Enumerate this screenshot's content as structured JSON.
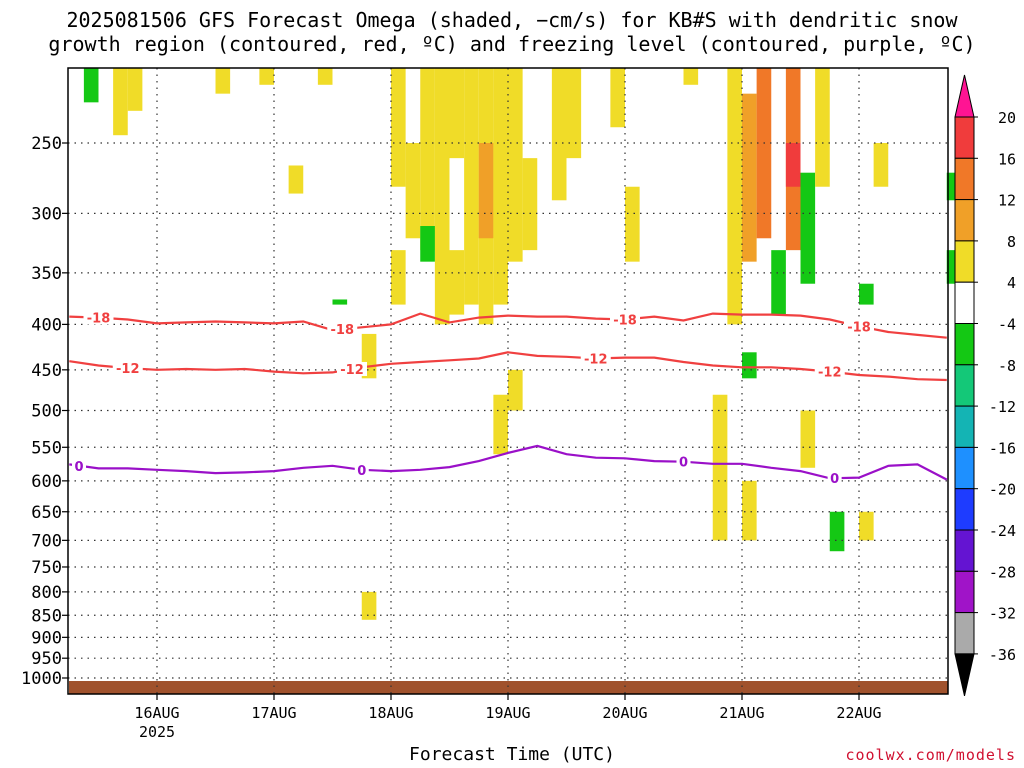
{
  "title_line1": "2025081506 GFS Forecast Omega (shaded, −cm/s) for KB#S with dendritic snow",
  "title_line2": "growth region (contoured, red, ºC) and freezing level (contoured, purple, ºC)",
  "x_axis_title": "Forecast Time (UTC)",
  "credit": "coolwx.com/models",
  "chart_data": {
    "type": "heatmap",
    "x_time_range": [
      "2025-08-15T06Z",
      "2025-08-22T18Z"
    ],
    "x_ticks": [
      {
        "time": "2025-08-16T00Z",
        "label": "16AUG",
        "sublabel": "2025"
      },
      {
        "time": "2025-08-17T00Z",
        "label": "17AUG",
        "sublabel": ""
      },
      {
        "time": "2025-08-18T00Z",
        "label": "18AUG",
        "sublabel": ""
      },
      {
        "time": "2025-08-19T00Z",
        "label": "19AUG",
        "sublabel": ""
      },
      {
        "time": "2025-08-20T00Z",
        "label": "20AUG",
        "sublabel": ""
      },
      {
        "time": "2025-08-21T00Z",
        "label": "21AUG",
        "sublabel": ""
      },
      {
        "time": "2025-08-22T00Z",
        "label": "22AUG",
        "sublabel": ""
      }
    ],
    "y_axis": "pressure (hPa)",
    "y_range": [
      200,
      1020
    ],
    "y_scale": "log",
    "y_reversed": true,
    "y_ticks": [
      250,
      300,
      350,
      400,
      450,
      500,
      550,
      600,
      650,
      700,
      750,
      800,
      850,
      900,
      950,
      1000
    ],
    "grid": "dotted",
    "colorbar": {
      "labels": [
        "20",
        "16",
        "12",
        "8",
        "4",
        "-4",
        "-8",
        "-12",
        "-16",
        "-20",
        "-24",
        "-28",
        "-32",
        "-36"
      ],
      "colors": [
        "#ff1493",
        "#f03c3c",
        "#f07828",
        "#f0a028",
        "#f0dc28",
        "#ffffff",
        "#14c814",
        "#14c878",
        "#14b4b4",
        "#1e90ff",
        "#1e3cff",
        "#6414d2",
        "#a014c8",
        "#aaaaaa",
        "#000000"
      ]
    },
    "shading_hours_per_col": 3,
    "shading": [
      {
        "day": "15",
        "hour": 9,
        "p_top": 200,
        "p_bot": 225,
        "value": -6
      },
      {
        "day": "15",
        "hour": 15,
        "p_top": 200,
        "p_bot": 245,
        "value": 5
      },
      {
        "day": "15",
        "hour": 18,
        "p_top": 200,
        "p_bot": 230,
        "value": 5
      },
      {
        "day": "16",
        "hour": 12,
        "p_top": 200,
        "p_bot": 220,
        "value": 5
      },
      {
        "day": "16",
        "hour": 21,
        "p_top": 200,
        "p_bot": 215,
        "value": 5
      },
      {
        "day": "17",
        "hour": 3,
        "p_top": 265,
        "p_bot": 285,
        "value": 5
      },
      {
        "day": "17",
        "hour": 9,
        "p_top": 200,
        "p_bot": 215,
        "value": 5
      },
      {
        "day": "17",
        "hour": 12,
        "p_top": 375,
        "p_bot": 380,
        "value": -6
      },
      {
        "day": "17",
        "hour": 18,
        "p_top": 410,
        "p_bot": 460,
        "value": 5
      },
      {
        "day": "17",
        "hour": 18,
        "p_top": 800,
        "p_bot": 860,
        "value": 5
      },
      {
        "day": "18",
        "hour": 0,
        "p_top": 200,
        "p_bot": 280,
        "value": 5
      },
      {
        "day": "18",
        "hour": 0,
        "p_top": 330,
        "p_bot": 380,
        "value": 5
      },
      {
        "day": "18",
        "hour": 3,
        "p_top": 250,
        "p_bot": 320,
        "value": 5
      },
      {
        "day": "18",
        "hour": 6,
        "p_top": 200,
        "p_bot": 330,
        "value": 5
      },
      {
        "day": "18",
        "hour": 9,
        "p_top": 200,
        "p_bot": 400,
        "value": 5
      },
      {
        "day": "18",
        "hour": 12,
        "p_top": 200,
        "p_bot": 260,
        "value": 5
      },
      {
        "day": "18",
        "hour": 12,
        "p_top": 330,
        "p_bot": 390,
        "value": 5
      },
      {
        "day": "18",
        "hour": 6,
        "p_top": 310,
        "p_bot": 340,
        "value": -6
      },
      {
        "day": "18",
        "hour": 15,
        "p_top": 200,
        "p_bot": 380,
        "value": 5
      },
      {
        "day": "18",
        "hour": 18,
        "p_top": 200,
        "p_bot": 400,
        "value": 5
      },
      {
        "day": "18",
        "hour": 18,
        "p_top": 250,
        "p_bot": 320,
        "value": 10
      },
      {
        "day": "18",
        "hour": 21,
        "p_top": 200,
        "p_bot": 380,
        "value": 5
      },
      {
        "day": "19",
        "hour": 0,
        "p_top": 200,
        "p_bot": 340,
        "value": 5
      },
      {
        "day": "19",
        "hour": 0,
        "p_top": 450,
        "p_bot": 500,
        "value": 5
      },
      {
        "day": "18",
        "hour": 21,
        "p_top": 480,
        "p_bot": 560,
        "value": 5
      },
      {
        "day": "19",
        "hour": 3,
        "p_top": 260,
        "p_bot": 330,
        "value": 5
      },
      {
        "day": "19",
        "hour": 9,
        "p_top": 200,
        "p_bot": 290,
        "value": 5
      },
      {
        "day": "19",
        "hour": 12,
        "p_top": 200,
        "p_bot": 260,
        "value": 5
      },
      {
        "day": "19",
        "hour": 21,
        "p_top": 200,
        "p_bot": 240,
        "value": 5
      },
      {
        "day": "20",
        "hour": 0,
        "p_top": 280,
        "p_bot": 340,
        "value": 5
      },
      {
        "day": "20",
        "hour": 12,
        "p_top": 200,
        "p_bot": 215,
        "value": 5
      },
      {
        "day": "20",
        "hour": 18,
        "p_top": 480,
        "p_bot": 700,
        "value": 5
      },
      {
        "day": "20",
        "hour": 21,
        "p_top": 200,
        "p_bot": 400,
        "value": 5
      },
      {
        "day": "21",
        "hour": 0,
        "p_top": 220,
        "p_bot": 340,
        "value": 10
      },
      {
        "day": "21",
        "hour": 3,
        "p_top": 200,
        "p_bot": 320,
        "value": 14
      },
      {
        "day": "21",
        "hour": 0,
        "p_top": 430,
        "p_bot": 460,
        "value": -6
      },
      {
        "day": "21",
        "hour": 0,
        "p_top": 600,
        "p_bot": 700,
        "value": 5
      },
      {
        "day": "21",
        "hour": 6,
        "p_top": 330,
        "p_bot": 390,
        "value": -6
      },
      {
        "day": "21",
        "hour": 9,
        "p_top": 200,
        "p_bot": 330,
        "value": 14
      },
      {
        "day": "21",
        "hour": 9,
        "p_top": 250,
        "p_bot": 280,
        "value": 18
      },
      {
        "day": "21",
        "hour": 12,
        "p_top": 270,
        "p_bot": 360,
        "value": -6
      },
      {
        "day": "21",
        "hour": 12,
        "p_top": 500,
        "p_bot": 580,
        "value": 5
      },
      {
        "day": "21",
        "hour": 15,
        "p_top": 200,
        "p_bot": 280,
        "value": 5
      },
      {
        "day": "21",
        "hour": 18,
        "p_top": 650,
        "p_bot": 720,
        "value": -6
      },
      {
        "day": "22",
        "hour": 0,
        "p_top": 360,
        "p_bot": 380,
        "value": -6
      },
      {
        "day": "22",
        "hour": 0,
        "p_top": 650,
        "p_bot": 700,
        "value": 5
      },
      {
        "day": "22",
        "hour": 3,
        "p_top": 250,
        "p_bot": 280,
        "value": 5
      },
      {
        "day": "22",
        "hour": 18,
        "p_top": 270,
        "p_bot": 290,
        "value": -6
      },
      {
        "day": "22",
        "hour": 18,
        "p_top": 330,
        "p_bot": 360,
        "value": -6
      }
    ],
    "contours": [
      {
        "name": "dendritic -18",
        "level": -18,
        "color": "#f04040",
        "labels": [
          "-18",
          "-18",
          "-18",
          "-18"
        ],
        "points": [
          [
            0,
            392
          ],
          [
            6,
            393
          ],
          [
            12,
            395
          ],
          [
            18,
            399
          ],
          [
            24,
            398
          ],
          [
            30,
            397
          ],
          [
            36,
            398
          ],
          [
            42,
            399
          ],
          [
            48,
            397
          ],
          [
            54,
            406
          ],
          [
            60,
            403
          ],
          [
            66,
            400
          ],
          [
            72,
            389
          ],
          [
            78,
            398
          ],
          [
            84,
            393
          ],
          [
            90,
            391
          ],
          [
            96,
            392
          ],
          [
            102,
            392
          ],
          [
            108,
            394
          ],
          [
            114,
            395
          ],
          [
            120,
            392
          ],
          [
            126,
            396
          ],
          [
            132,
            389
          ],
          [
            138,
            390
          ],
          [
            144,
            390
          ],
          [
            150,
            391
          ],
          [
            156,
            395
          ],
          [
            162,
            402
          ],
          [
            168,
            408
          ],
          [
            174,
            411
          ],
          [
            180,
            414
          ]
        ],
        "label_hours": [
          6,
          56,
          114,
          162
        ]
      },
      {
        "name": "dendritic -12",
        "level": -12,
        "color": "#f04040",
        "labels": [
          "-12",
          "-12",
          "-12",
          "-12"
        ],
        "points": [
          [
            0,
            440
          ],
          [
            6,
            445
          ],
          [
            12,
            448
          ],
          [
            18,
            450
          ],
          [
            24,
            449
          ],
          [
            30,
            450
          ],
          [
            36,
            449
          ],
          [
            42,
            452
          ],
          [
            48,
            454
          ],
          [
            54,
            453
          ],
          [
            60,
            447
          ],
          [
            66,
            443
          ],
          [
            72,
            441
          ],
          [
            78,
            439
          ],
          [
            84,
            437
          ],
          [
            90,
            430
          ],
          [
            96,
            434
          ],
          [
            102,
            435
          ],
          [
            108,
            437
          ],
          [
            114,
            436
          ],
          [
            120,
            436
          ],
          [
            126,
            441
          ],
          [
            132,
            445
          ],
          [
            138,
            447
          ],
          [
            144,
            447
          ],
          [
            150,
            449
          ],
          [
            156,
            452
          ],
          [
            162,
            456
          ],
          [
            168,
            458
          ],
          [
            174,
            461
          ],
          [
            180,
            462
          ]
        ],
        "label_hours": [
          12,
          58,
          108,
          156
        ]
      },
      {
        "name": "freezing level",
        "level": 0,
        "color": "#9a10c8",
        "labels": [
          "0",
          "0",
          "0"
        ],
        "points": [
          [
            0,
            575
          ],
          [
            6,
            581
          ],
          [
            12,
            581
          ],
          [
            18,
            583
          ],
          [
            24,
            585
          ],
          [
            30,
            588
          ],
          [
            36,
            587
          ],
          [
            42,
            585
          ],
          [
            48,
            580
          ],
          [
            54,
            577
          ],
          [
            60,
            583
          ],
          [
            66,
            585
          ],
          [
            72,
            583
          ],
          [
            78,
            579
          ],
          [
            84,
            570
          ],
          [
            90,
            558
          ],
          [
            96,
            548
          ],
          [
            102,
            560
          ],
          [
            108,
            565
          ],
          [
            114,
            566
          ],
          [
            120,
            570
          ],
          [
            126,
            571
          ],
          [
            132,
            574
          ],
          [
            138,
            574
          ],
          [
            144,
            580
          ],
          [
            150,
            585
          ],
          [
            156,
            596
          ],
          [
            162,
            595
          ],
          [
            168,
            577
          ],
          [
            174,
            575
          ],
          [
            180,
            598
          ]
        ],
        "label_hours": [
          2,
          60,
          126,
          157
        ]
      }
    ]
  }
}
